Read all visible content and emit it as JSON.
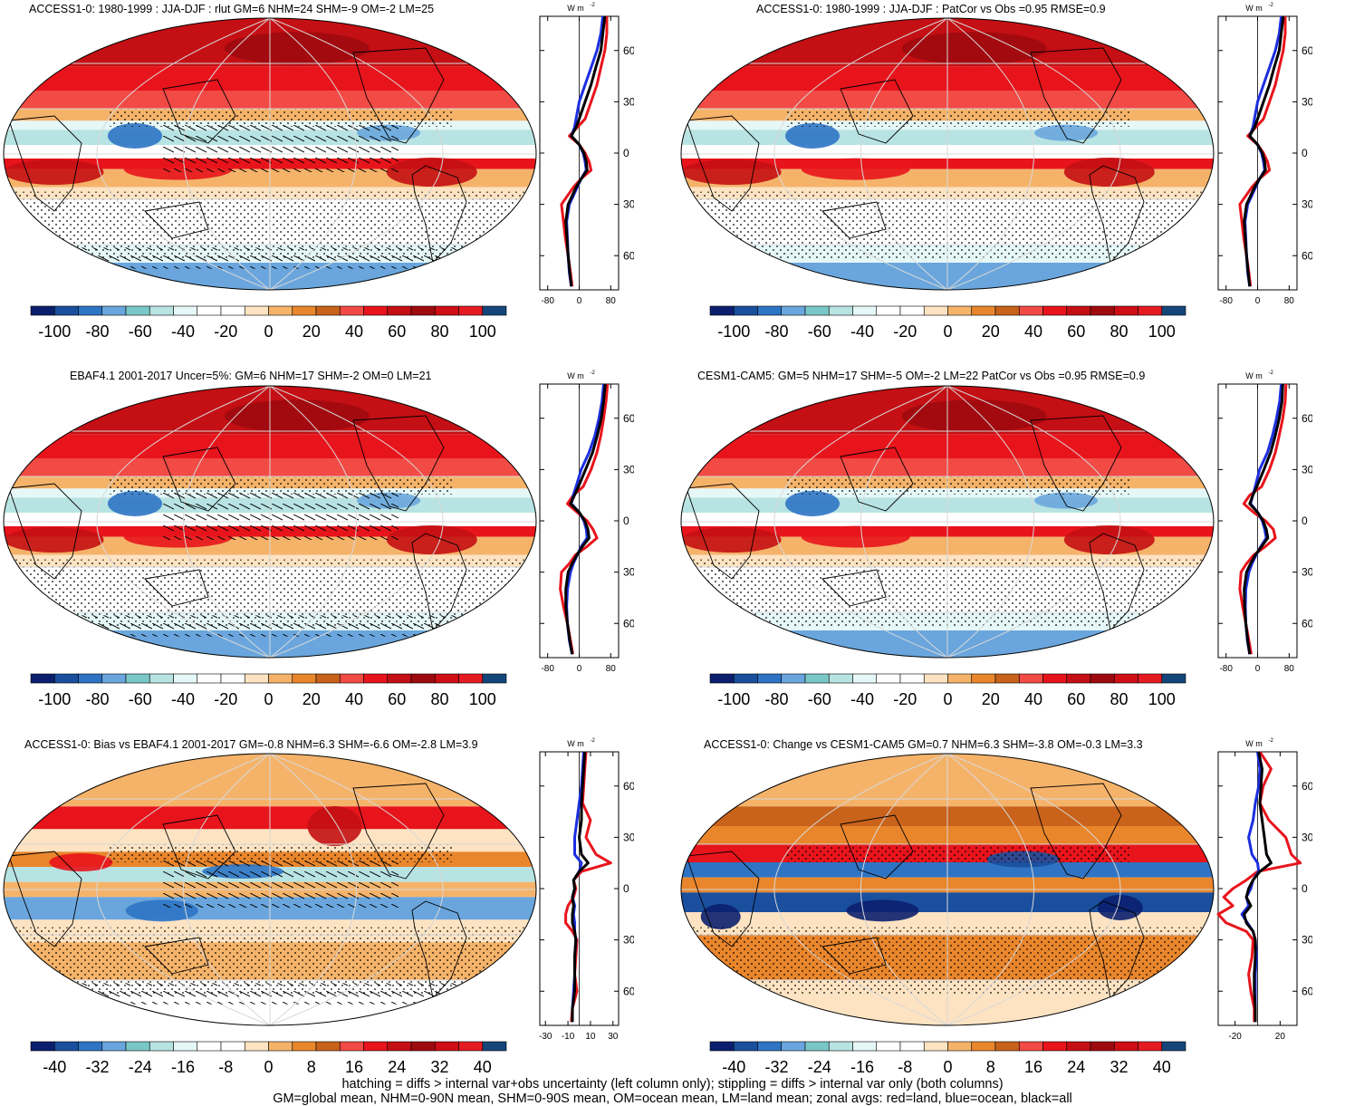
{
  "panels": [
    {
      "id": "p0",
      "title": "ACCESS1-0: 1980-1999 : JJA-DJF : rlut GM=6 NHM=24 SHM=-9 OM=-2 LM=25",
      "scale": "main",
      "hatch": true,
      "profile": "p0"
    },
    {
      "id": "p1",
      "title": "ACCESS1-0: 1980-1999 : JJA-DJF : PatCor vs Obs =0.95 RMSE=0.9",
      "scale": "main",
      "hatch": false,
      "profile": "p1"
    },
    {
      "id": "p2",
      "title": "EBAF4.1 2001-2017 Uncer=5%: GM=6 NHM=17 SHM=-2 OM=0 LM=21",
      "scale": "main",
      "hatch": true,
      "profile": "p2"
    },
    {
      "id": "p3",
      "title": "CESM1-CAM5: GM=5 NHM=17 SHM=-5 OM=-2 LM=22 PatCor vs Obs =0.95 RMSE=0.9",
      "scale": "main",
      "hatch": false,
      "profile": "p3"
    },
    {
      "id": "p4",
      "title": "ACCESS1-0: Bias vs EBAF4.1 2001-2017 GM=-0.8 NHM=6.3 SHM=-6.6 OM=-2.8 LM=3.9",
      "scale": "diff",
      "hatch": true,
      "profile": "p4"
    },
    {
      "id": "p5",
      "title": "ACCESS1-0: Change vs CESM1-CAM5 GM=0.7 NHM=6.3 SHM=-3.8 OM=-0.3 LM=3.3",
      "scale": "diff",
      "hatch": false,
      "profile": "p5"
    }
  ],
  "units_label": "W m",
  "units_sup": "-2",
  "lat_labels": [
    "60N",
    "30N",
    "0",
    "30S",
    "60S"
  ],
  "colorbars": {
    "main": {
      "labels": [
        "-100",
        "-80",
        "-60",
        "-40",
        "-20",
        "0",
        "20",
        "40",
        "60",
        "80",
        "100"
      ]
    },
    "diff": {
      "labels": [
        "-40",
        "-32",
        "-24",
        "-16",
        "-8",
        "0",
        "8",
        "16",
        "24",
        "32",
        "40"
      ]
    }
  },
  "colors": [
    "#0b1f6e",
    "#1a4f9e",
    "#2f74c4",
    "#6aa6dd",
    "#7ac7c7",
    "#b8e3e3",
    "#e6f7f7",
    "#ffffff",
    "#ffffff",
    "#fde3c2",
    "#f5b36a",
    "#e9862c",
    "#c9621a",
    "#f24a45",
    "#e8141c",
    "#c40f14",
    "#9e0a0e",
    "#cf0e16",
    "#e51b22",
    "#15467a"
  ],
  "chart_data": [
    {
      "type": "line",
      "panel": "p0",
      "xlabel": "W m-2",
      "xticks": [
        "-80",
        "0",
        "80"
      ],
      "xlim": [
        -100,
        100
      ],
      "ylim": [
        -80,
        80
      ],
      "yticks": [
        "60N",
        "30N",
        "0",
        "30S",
        "60S"
      ],
      "series": [
        {
          "name": "land",
          "color": "#e8141c",
          "lat": [
            80,
            70,
            60,
            50,
            40,
            30,
            20,
            15,
            10,
            5,
            0,
            -5,
            -10,
            -15,
            -20,
            -25,
            -30,
            -40,
            -50,
            -60,
            -70,
            -78
          ],
          "values": [
            70,
            70,
            65,
            55,
            45,
            30,
            15,
            -5,
            -25,
            0,
            15,
            25,
            30,
            5,
            -15,
            -30,
            -45,
            -40,
            -35,
            -28,
            -22,
            -18
          ]
        },
        {
          "name": "ocean",
          "color": "#1c2fe0",
          "lat": [
            80,
            70,
            60,
            50,
            40,
            30,
            20,
            15,
            10,
            5,
            0,
            -5,
            -10,
            -15,
            -20,
            -25,
            -30,
            -40,
            -50,
            -60,
            -70,
            -78
          ],
          "values": [
            60,
            55,
            45,
            30,
            15,
            0,
            -8,
            -12,
            -20,
            0,
            10,
            15,
            18,
            5,
            -5,
            -15,
            -25,
            -32,
            -30,
            -28,
            -25,
            -20
          ]
        },
        {
          "name": "all",
          "color": "#000000",
          "lat": [
            80,
            70,
            60,
            50,
            40,
            30,
            20,
            15,
            10,
            5,
            0,
            -5,
            -10,
            -15,
            -20,
            -25,
            -30,
            -40,
            -50,
            -60,
            -70,
            -78
          ],
          "values": [
            65,
            60,
            55,
            42,
            30,
            15,
            0,
            -8,
            -20,
            0,
            12,
            18,
            20,
            5,
            -8,
            -18,
            -28,
            -34,
            -31,
            -28,
            -24,
            -20
          ]
        }
      ]
    },
    {
      "type": "line",
      "panel": "p1",
      "xlabel": "W m-2",
      "xticks": [
        "-80",
        "0",
        "80"
      ],
      "xlim": [
        -100,
        100
      ],
      "ylim": [
        -80,
        80
      ],
      "yticks": [
        "60N",
        "30N",
        "0",
        "30S",
        "60S"
      ],
      "series": [
        {
          "name": "land",
          "color": "#e8141c",
          "lat": [
            80,
            70,
            60,
            50,
            40,
            30,
            20,
            15,
            10,
            5,
            0,
            -5,
            -10,
            -15,
            -20,
            -25,
            -30,
            -40,
            -50,
            -60,
            -70,
            -78
          ],
          "values": [
            70,
            70,
            65,
            55,
            45,
            30,
            15,
            -5,
            -25,
            0,
            15,
            25,
            30,
            5,
            -15,
            -30,
            -45,
            -40,
            -35,
            -28,
            -22,
            -18
          ]
        },
        {
          "name": "ocean",
          "color": "#1c2fe0",
          "lat": [
            80,
            70,
            60,
            50,
            40,
            30,
            20,
            15,
            10,
            5,
            0,
            -5,
            -10,
            -15,
            -20,
            -25,
            -30,
            -40,
            -50,
            -60,
            -70,
            -78
          ],
          "values": [
            60,
            55,
            45,
            30,
            15,
            0,
            -8,
            -12,
            -20,
            0,
            10,
            15,
            18,
            5,
            -5,
            -15,
            -25,
            -32,
            -30,
            -28,
            -25,
            -20
          ]
        },
        {
          "name": "all",
          "color": "#000000",
          "lat": [
            80,
            70,
            60,
            50,
            40,
            30,
            20,
            15,
            10,
            5,
            0,
            -5,
            -10,
            -15,
            -20,
            -25,
            -30,
            -40,
            -50,
            -60,
            -70,
            -78
          ],
          "values": [
            65,
            60,
            55,
            42,
            30,
            15,
            0,
            -8,
            -20,
            0,
            12,
            18,
            20,
            5,
            -8,
            -18,
            -28,
            -34,
            -31,
            -28,
            -24,
            -20
          ]
        }
      ]
    },
    {
      "type": "line",
      "panel": "p2",
      "xlabel": "W m-2",
      "xticks": [
        "-80",
        "0",
        "80"
      ],
      "xlim": [
        -100,
        100
      ],
      "ylim": [
        -80,
        80
      ],
      "yticks": [
        "60N",
        "30N",
        "0",
        "30S",
        "60S"
      ],
      "series": [
        {
          "name": "land",
          "color": "#e8141c",
          "lat": [
            80,
            70,
            60,
            50,
            40,
            30,
            20,
            15,
            10,
            5,
            0,
            -5,
            -10,
            -15,
            -20,
            -25,
            -30,
            -40,
            -50,
            -60,
            -70,
            -78
          ],
          "values": [
            72,
            68,
            62,
            55,
            45,
            30,
            10,
            -15,
            -30,
            -5,
            20,
            35,
            45,
            20,
            -10,
            -25,
            -45,
            -48,
            -40,
            -30,
            -22,
            -16
          ]
        },
        {
          "name": "ocean",
          "color": "#1c2fe0",
          "lat": [
            80,
            70,
            60,
            50,
            40,
            30,
            20,
            15,
            10,
            5,
            0,
            -5,
            -10,
            -15,
            -20,
            -25,
            -30,
            -40,
            -50,
            -60,
            -70,
            -78
          ],
          "values": [
            62,
            58,
            50,
            40,
            25,
            5,
            -8,
            -15,
            -20,
            0,
            12,
            18,
            20,
            5,
            -5,
            -15,
            -22,
            -30,
            -32,
            -30,
            -25,
            -18
          ]
        },
        {
          "name": "all",
          "color": "#000000",
          "lat": [
            80,
            70,
            60,
            50,
            40,
            30,
            20,
            15,
            10,
            5,
            0,
            -5,
            -10,
            -15,
            -20,
            -25,
            -30,
            -40,
            -50,
            -60,
            -70,
            -78
          ],
          "values": [
            66,
            62,
            56,
            46,
            34,
            16,
            -2,
            -12,
            -22,
            0,
            14,
            22,
            25,
            8,
            -6,
            -18,
            -28,
            -34,
            -34,
            -30,
            -24,
            -18
          ]
        }
      ]
    },
    {
      "type": "line",
      "panel": "p3",
      "xlabel": "W m-2",
      "xticks": [
        "-80",
        "0",
        "80"
      ],
      "xlim": [
        -100,
        100
      ],
      "ylim": [
        -80,
        80
      ],
      "yticks": [
        "60N",
        "30N",
        "0",
        "30S",
        "60S"
      ],
      "series": [
        {
          "name": "land",
          "color": "#e8141c",
          "lat": [
            80,
            70,
            60,
            50,
            40,
            30,
            20,
            15,
            10,
            5,
            0,
            -5,
            -10,
            -15,
            -20,
            -25,
            -30,
            -40,
            -50,
            -60,
            -70,
            -78
          ],
          "values": [
            72,
            70,
            64,
            55,
            45,
            30,
            10,
            -20,
            -35,
            -10,
            20,
            40,
            45,
            20,
            -10,
            -28,
            -42,
            -45,
            -38,
            -30,
            -22,
            -16
          ]
        },
        {
          "name": "ocean",
          "color": "#1c2fe0",
          "lat": [
            80,
            70,
            60,
            50,
            40,
            30,
            20,
            15,
            10,
            5,
            0,
            -5,
            -10,
            -15,
            -20,
            -25,
            -30,
            -40,
            -50,
            -60,
            -70,
            -78
          ],
          "values": [
            60,
            56,
            48,
            38,
            25,
            5,
            -6,
            -12,
            -18,
            0,
            12,
            18,
            22,
            8,
            -4,
            -14,
            -22,
            -30,
            -31,
            -30,
            -26,
            -20
          ]
        },
        {
          "name": "all",
          "color": "#000000",
          "lat": [
            80,
            70,
            60,
            50,
            40,
            30,
            20,
            15,
            10,
            5,
            0,
            -5,
            -10,
            -15,
            -20,
            -25,
            -30,
            -40,
            -50,
            -60,
            -70,
            -78
          ],
          "values": [
            64,
            62,
            55,
            45,
            33,
            16,
            -2,
            -12,
            -20,
            0,
            14,
            22,
            26,
            10,
            -6,
            -18,
            -28,
            -34,
            -33,
            -30,
            -25,
            -20
          ]
        }
      ]
    },
    {
      "type": "line",
      "panel": "p4",
      "xlabel": "W m-2",
      "xticks": [
        "-30",
        "-10",
        "10",
        "30"
      ],
      "xlim": [
        -35,
        35
      ],
      "ylim": [
        -80,
        80
      ],
      "yticks": [
        "60N",
        "30N",
        "0",
        "30S",
        "60S"
      ],
      "series": [
        {
          "name": "land",
          "color": "#e8141c",
          "lat": [
            80,
            70,
            60,
            50,
            40,
            30,
            20,
            15,
            10,
            5,
            0,
            -5,
            -10,
            -15,
            -20,
            -25,
            -30,
            -40,
            -50,
            -60,
            -70,
            -78
          ],
          "values": [
            6,
            5,
            4,
            3,
            10,
            6,
            15,
            28,
            2,
            -5,
            -3,
            -5,
            -10,
            -12,
            -12,
            -6,
            -2,
            -3,
            -4,
            -2,
            -6,
            -7
          ]
        },
        {
          "name": "ocean",
          "color": "#1c2fe0",
          "lat": [
            80,
            70,
            60,
            50,
            40,
            30,
            20,
            15,
            10,
            5,
            0,
            -5,
            -10,
            -15,
            -20,
            -25,
            -30,
            -40,
            -50,
            -60,
            -70,
            -78
          ],
          "values": [
            4,
            3,
            2,
            0,
            -2,
            -4,
            -4,
            2,
            0,
            -5,
            -4,
            -6,
            -4,
            -5,
            -4,
            -4,
            -3,
            -4,
            -4,
            -5,
            -6,
            -6
          ]
        },
        {
          "name": "all",
          "color": "#000000",
          "lat": [
            80,
            70,
            60,
            50,
            40,
            30,
            20,
            15,
            10,
            5,
            0,
            -5,
            -10,
            -15,
            -20,
            -25,
            -30,
            -40,
            -50,
            -60,
            -70,
            -78
          ],
          "values": [
            5,
            4,
            3,
            2,
            2,
            0,
            2,
            8,
            0,
            -5,
            -4,
            -6,
            -5,
            -6,
            -6,
            -4,
            -3,
            -4,
            -4,
            -4,
            -6,
            -6
          ]
        }
      ]
    },
    {
      "type": "line",
      "panel": "p5",
      "xlabel": "W m-2",
      "xticks": [
        "-20",
        "20"
      ],
      "xlim": [
        -35,
        35
      ],
      "ylim": [
        -80,
        80
      ],
      "yticks": [
        "60N",
        "30N",
        "0",
        "30S",
        "60S"
      ],
      "series": [
        {
          "name": "land",
          "color": "#e8141c",
          "lat": [
            80,
            70,
            60,
            50,
            40,
            30,
            20,
            15,
            10,
            5,
            0,
            -5,
            -10,
            -15,
            -20,
            -25,
            -30,
            -40,
            -50,
            -60,
            -70,
            -78
          ],
          "values": [
            2,
            12,
            5,
            2,
            10,
            25,
            30,
            38,
            0,
            -10,
            -22,
            -30,
            -22,
            -35,
            -28,
            -10,
            -4,
            -5,
            -8,
            -6,
            -3,
            -3
          ]
        },
        {
          "name": "ocean",
          "color": "#1c2fe0",
          "lat": [
            80,
            70,
            60,
            50,
            40,
            30,
            20,
            15,
            10,
            5,
            0,
            -5,
            -10,
            -15,
            -20,
            -25,
            -30,
            -40,
            -50,
            -60,
            -70,
            -78
          ],
          "values": [
            0,
            2,
            1,
            -2,
            -4,
            -8,
            -5,
            0,
            1,
            -4,
            -6,
            -10,
            -8,
            -14,
            -9,
            -4,
            -2,
            -1,
            -2,
            -2,
            -2,
            -2
          ]
        },
        {
          "name": "all",
          "color": "#000000",
          "lat": [
            80,
            70,
            60,
            50,
            40,
            30,
            20,
            15,
            10,
            5,
            0,
            -5,
            -10,
            -15,
            -20,
            -25,
            -30,
            -40,
            -50,
            -60,
            -70,
            -78
          ],
          "values": [
            1,
            4,
            3,
            2,
            4,
            6,
            8,
            12,
            2,
            -4,
            -8,
            -10,
            -6,
            -12,
            -10,
            -4,
            -2,
            -2,
            -3,
            -3,
            -2,
            -2
          ]
        }
      ]
    }
  ],
  "footer": {
    "line1": "hatching = diffs > internal var+obs uncertainty (left column only); stippling = diffs > internal var only (both columns)",
    "line2": "GM=global mean, NHM=0-90N mean, SHM=0-90S mean, OM=ocean mean, LM=land mean; zonal avgs: red=land, blue=ocean, black=all"
  }
}
